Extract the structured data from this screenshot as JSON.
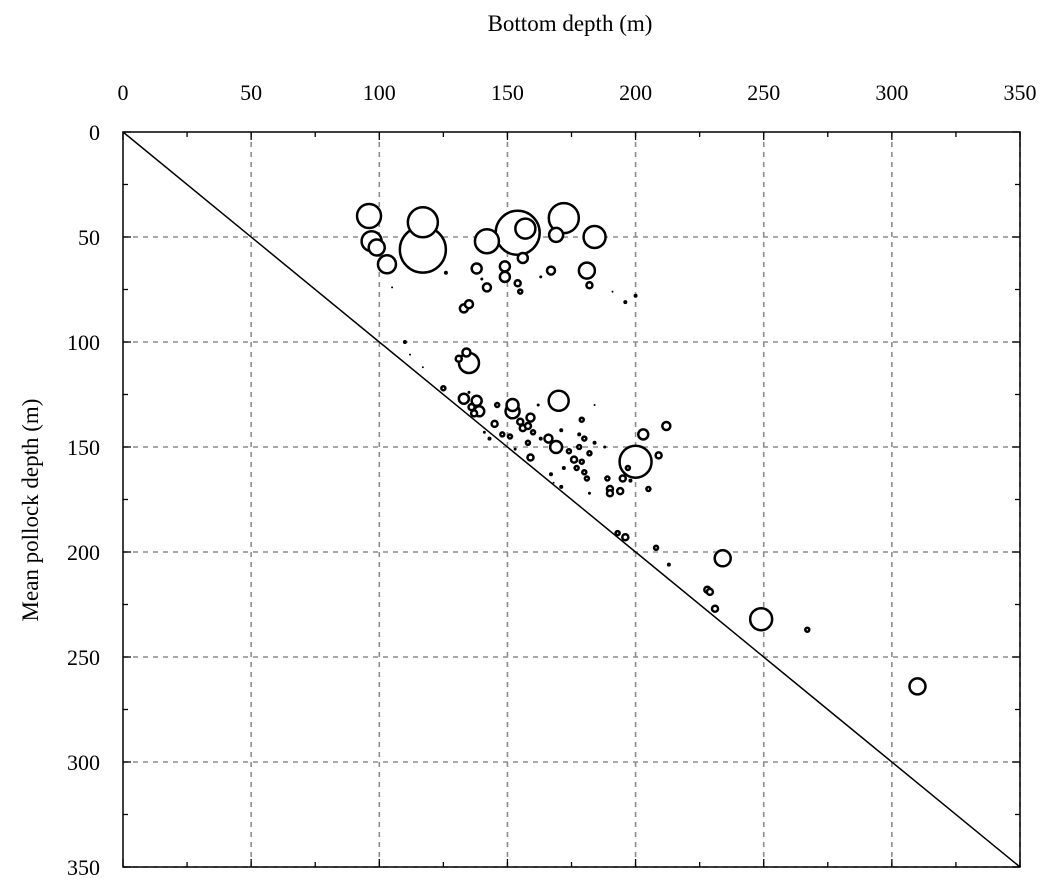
{
  "chart_data": {
    "type": "scatter",
    "xlabel": "Bottom depth (m)",
    "ylabel": "Mean pollock depth (m)",
    "xlim": [
      0,
      350
    ],
    "ylim": [
      0,
      350
    ],
    "y_inverted": true,
    "x_axis_position": "top",
    "x_ticks": [
      0,
      50,
      100,
      150,
      200,
      250,
      300,
      350
    ],
    "y_ticks": [
      0,
      50,
      100,
      150,
      200,
      250,
      300,
      350
    ],
    "grid": true,
    "reference_line": "y = x",
    "points": [
      {
        "x": 96,
        "y": 40,
        "size": 12
      },
      {
        "x": 97,
        "y": 52,
        "size": 10
      },
      {
        "x": 99,
        "y": 55,
        "size": 8
      },
      {
        "x": 103,
        "y": 63,
        "size": 9
      },
      {
        "x": 105,
        "y": 74,
        "size": 0.5
      },
      {
        "x": 117,
        "y": 56,
        "size": 23
      },
      {
        "x": 117,
        "y": 43,
        "size": 15
      },
      {
        "x": 126,
        "y": 67,
        "size": 1.5
      },
      {
        "x": 133,
        "y": 84,
        "size": 4
      },
      {
        "x": 135,
        "y": 82,
        "size": 4
      },
      {
        "x": 138,
        "y": 65,
        "size": 5
      },
      {
        "x": 142,
        "y": 52,
        "size": 12
      },
      {
        "x": 140,
        "y": 70,
        "size": 1
      },
      {
        "x": 142,
        "y": 74,
        "size": 4
      },
      {
        "x": 149,
        "y": 64,
        "size": 5
      },
      {
        "x": 149,
        "y": 69,
        "size": 5
      },
      {
        "x": 154,
        "y": 72,
        "size": 3
      },
      {
        "x": 155,
        "y": 76,
        "size": 2
      },
      {
        "x": 154,
        "y": 48,
        "size": 22
      },
      {
        "x": 157,
        "y": 46,
        "size": 10
      },
      {
        "x": 156,
        "y": 60,
        "size": 5
      },
      {
        "x": 163,
        "y": 69,
        "size": 1
      },
      {
        "x": 167,
        "y": 66,
        "size": 4
      },
      {
        "x": 169,
        "y": 49,
        "size": 7
      },
      {
        "x": 172,
        "y": 41,
        "size": 15
      },
      {
        "x": 181,
        "y": 66,
        "size": 8
      },
      {
        "x": 182,
        "y": 73,
        "size": 3
      },
      {
        "x": 184,
        "y": 50,
        "size": 11
      },
      {
        "x": 191,
        "y": 76,
        "size": 0.5
      },
      {
        "x": 196,
        "y": 81,
        "size": 1.5
      },
      {
        "x": 200,
        "y": 78,
        "size": 1.5
      },
      {
        "x": 110,
        "y": 100,
        "size": 1.5
      },
      {
        "x": 112,
        "y": 106,
        "size": 0.5
      },
      {
        "x": 117,
        "y": 112,
        "size": 0.5
      },
      {
        "x": 131,
        "y": 108,
        "size": 3
      },
      {
        "x": 134,
        "y": 105,
        "size": 4
      },
      {
        "x": 135,
        "y": 110,
        "size": 10
      },
      {
        "x": 125,
        "y": 122,
        "size": 2
      },
      {
        "x": 133,
        "y": 127,
        "size": 5
      },
      {
        "x": 135,
        "y": 124,
        "size": 1
      },
      {
        "x": 136,
        "y": 131,
        "size": 3
      },
      {
        "x": 137,
        "y": 134,
        "size": 3
      },
      {
        "x": 138,
        "y": 128,
        "size": 5
      },
      {
        "x": 139,
        "y": 133,
        "size": 5
      },
      {
        "x": 141,
        "y": 143,
        "size": 1
      },
      {
        "x": 143,
        "y": 146,
        "size": 1.5
      },
      {
        "x": 145,
        "y": 139,
        "size": 3
      },
      {
        "x": 146,
        "y": 130,
        "size": 2
      },
      {
        "x": 148,
        "y": 144,
        "size": 2
      },
      {
        "x": 151,
        "y": 145,
        "size": 2
      },
      {
        "x": 152,
        "y": 133,
        "size": 7
      },
      {
        "x": 152,
        "y": 130,
        "size": 6
      },
      {
        "x": 153,
        "y": 151,
        "size": 1
      },
      {
        "x": 155,
        "y": 138,
        "size": 3
      },
      {
        "x": 156,
        "y": 141,
        "size": 3
      },
      {
        "x": 158,
        "y": 148,
        "size": 2
      },
      {
        "x": 158,
        "y": 140,
        "size": 3
      },
      {
        "x": 159,
        "y": 136,
        "size": 4
      },
      {
        "x": 159,
        "y": 155,
        "size": 3
      },
      {
        "x": 160,
        "y": 143,
        "size": 2
      },
      {
        "x": 162,
        "y": 130,
        "size": 1
      },
      {
        "x": 163,
        "y": 146,
        "size": 1.5
      },
      {
        "x": 166,
        "y": 146,
        "size": 4
      },
      {
        "x": 167,
        "y": 163,
        "size": 1.5
      },
      {
        "x": 168,
        "y": 167,
        "size": 0.5
      },
      {
        "x": 169,
        "y": 150,
        "size": 6
      },
      {
        "x": 170,
        "y": 128,
        "size": 10
      },
      {
        "x": 171,
        "y": 142,
        "size": 1.5
      },
      {
        "x": 172,
        "y": 160,
        "size": 1.5
      },
      {
        "x": 171,
        "y": 169,
        "size": 1.5
      },
      {
        "x": 174,
        "y": 152,
        "size": 2
      },
      {
        "x": 176,
        "y": 156,
        "size": 3
      },
      {
        "x": 177,
        "y": 160,
        "size": 2
      },
      {
        "x": 178,
        "y": 144,
        "size": 1.5
      },
      {
        "x": 178,
        "y": 150,
        "size": 2
      },
      {
        "x": 179,
        "y": 137,
        "size": 2
      },
      {
        "x": 179,
        "y": 157,
        "size": 2
      },
      {
        "x": 180,
        "y": 146,
        "size": 2
      },
      {
        "x": 180,
        "y": 162,
        "size": 2
      },
      {
        "x": 181,
        "y": 165,
        "size": 2
      },
      {
        "x": 182,
        "y": 153,
        "size": 2
      },
      {
        "x": 182,
        "y": 172,
        "size": 1
      },
      {
        "x": 184,
        "y": 148,
        "size": 1.5
      },
      {
        "x": 184,
        "y": 130,
        "size": 0.5
      },
      {
        "x": 188,
        "y": 150,
        "size": 1
      },
      {
        "x": 189,
        "y": 165,
        "size": 2
      },
      {
        "x": 190,
        "y": 170,
        "size": 3
      },
      {
        "x": 190,
        "y": 172,
        "size": 3
      },
      {
        "x": 194,
        "y": 171,
        "size": 3
      },
      {
        "x": 195,
        "y": 165,
        "size": 3
      },
      {
        "x": 197,
        "y": 160,
        "size": 2
      },
      {
        "x": 198,
        "y": 166,
        "size": 1.5
      },
      {
        "x": 200,
        "y": 157,
        "size": 16
      },
      {
        "x": 203,
        "y": 144,
        "size": 5
      },
      {
        "x": 205,
        "y": 170,
        "size": 2
      },
      {
        "x": 209,
        "y": 154,
        "size": 3
      },
      {
        "x": 212,
        "y": 140,
        "size": 4
      },
      {
        "x": 193,
        "y": 191,
        "size": 2
      },
      {
        "x": 196,
        "y": 193,
        "size": 3
      },
      {
        "x": 208,
        "y": 198,
        "size": 2
      },
      {
        "x": 213,
        "y": 206,
        "size": 1.5
      },
      {
        "x": 228,
        "y": 218,
        "size": 3
      },
      {
        "x": 229,
        "y": 219,
        "size": 3
      },
      {
        "x": 231,
        "y": 227,
        "size": 3
      },
      {
        "x": 234,
        "y": 203,
        "size": 8
      },
      {
        "x": 249,
        "y": 232,
        "size": 11
      },
      {
        "x": 267,
        "y": 237,
        "size": 2
      },
      {
        "x": 310,
        "y": 264,
        "size": 8
      }
    ]
  }
}
